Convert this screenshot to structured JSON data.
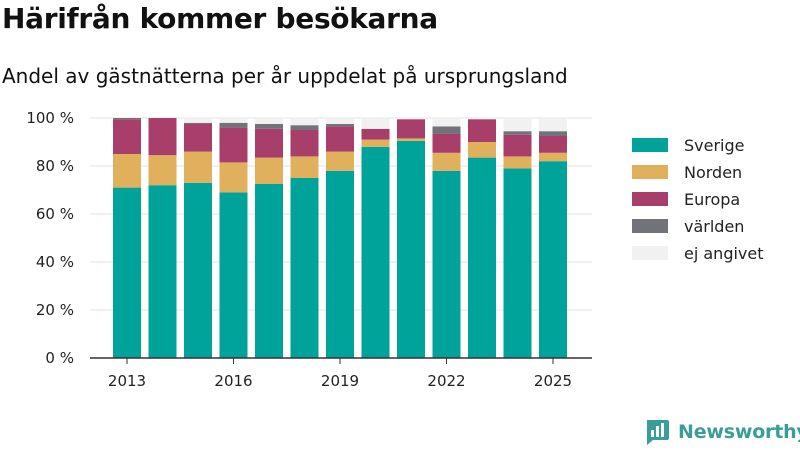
{
  "header": {
    "title": "Härifrån kommer besökarna",
    "subtitle": "Andel av gästnätterna per år uppdelat på ursprungsland"
  },
  "brand": {
    "name": "Newsworthy",
    "icon": "newsworthy-logo-icon",
    "color": "#3a9e98"
  },
  "chart_data": {
    "type": "bar",
    "stacked": true,
    "x": [
      2013,
      2014,
      2015,
      2016,
      2017,
      2018,
      2019,
      2020,
      2021,
      2022,
      2023,
      2024,
      2025
    ],
    "x_tick_labels": [
      "2013",
      "2016",
      "2019",
      "2022",
      "2025"
    ],
    "x_tick_values": [
      2013,
      2016,
      2019,
      2022,
      2025
    ],
    "y_tick_labels": [
      "0 %",
      "20 %",
      "40 %",
      "60 %",
      "80 %",
      "100 %"
    ],
    "y_tick_values": [
      0,
      20,
      40,
      60,
      80,
      100
    ],
    "ylim": [
      0,
      100
    ],
    "grid": true,
    "legend_position": "right",
    "series": [
      {
        "name": "Sverige",
        "color": "#00a39a",
        "values": [
          71,
          72,
          73,
          69,
          72.5,
          75,
          78,
          88,
          90.5,
          78,
          83.5,
          79,
          82
        ]
      },
      {
        "name": "Norden",
        "color": "#e0b05c",
        "values": [
          14,
          12.5,
          13,
          12.5,
          11,
          9,
          8,
          3,
          1,
          7.5,
          6.5,
          5,
          3.5
        ]
      },
      {
        "name": "Europa",
        "color": "#a83f6b",
        "values": [
          14.5,
          15.5,
          11.5,
          14.5,
          12,
          11,
          10.5,
          4.5,
          8,
          8,
          9.5,
          9,
          7
        ]
      },
      {
        "name": "världen",
        "color": "#727379",
        "values": [
          0.5,
          0,
          0.5,
          2,
          2,
          2,
          1,
          0,
          0,
          3,
          0,
          1.5,
          2
        ]
      },
      {
        "name": "ej angivet",
        "color": "#f1f1f1",
        "values": [
          0,
          0,
          2,
          2,
          2.5,
          3,
          2.5,
          4.5,
          0.5,
          3.5,
          0.5,
          5.5,
          5.5
        ]
      }
    ]
  }
}
